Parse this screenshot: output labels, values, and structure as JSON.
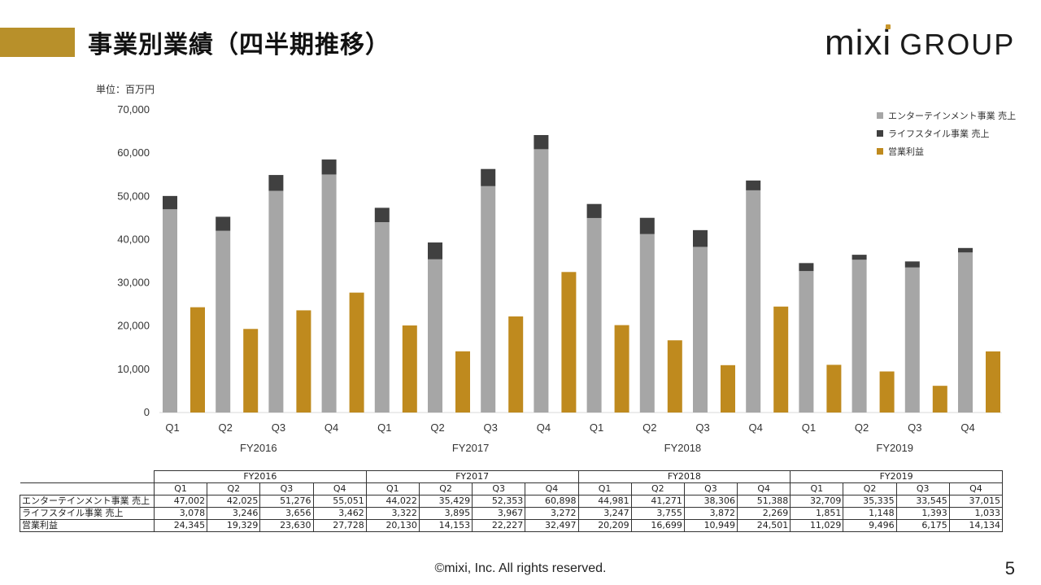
{
  "header": {
    "title": "事業別業績（四半期推移）",
    "logo_mixi": "mixi",
    "logo_group": "GROUP"
  },
  "colors": {
    "accent": "#b8902a",
    "entertainment": "#a6a6a6",
    "lifestyle": "#404040",
    "operating_profit": "#bf8a1e"
  },
  "chart_data": {
    "type": "bar",
    "unit_label": "単位：百万円",
    "ylim": [
      0,
      70000
    ],
    "yticks": [
      "0",
      "10,000",
      "20,000",
      "30,000",
      "40,000",
      "50,000",
      "60,000",
      "70,000"
    ],
    "grid": false,
    "legend_position": "top-right",
    "groups": [
      "FY2016",
      "FY2017",
      "FY2018",
      "FY2019"
    ],
    "categories": [
      "Q1",
      "Q2",
      "Q3",
      "Q4",
      "Q1",
      "Q2",
      "Q3",
      "Q4",
      "Q1",
      "Q2",
      "Q3",
      "Q4",
      "Q1",
      "Q2",
      "Q3",
      "Q4"
    ],
    "series": [
      {
        "name": "エンターテインメント事業 売上",
        "stack": "sales",
        "values": [
          47002,
          42025,
          51276,
          55051,
          44022,
          35429,
          52353,
          60898,
          44981,
          41271,
          38306,
          51388,
          32709,
          35335,
          33545,
          37015
        ]
      },
      {
        "name": "ライフスタイル事業 売上",
        "stack": "sales",
        "values": [
          3078,
          3246,
          3656,
          3462,
          3322,
          3895,
          3967,
          3272,
          3247,
          3755,
          3872,
          2269,
          1851,
          1148,
          1393,
          1033
        ]
      },
      {
        "name": "営業利益",
        "stack": "profit",
        "values": [
          24345,
          19329,
          23630,
          27728,
          20130,
          14153,
          22227,
          32497,
          20209,
          16699,
          10949,
          24501,
          11029,
          9496,
          6175,
          14134
        ]
      }
    ]
  },
  "table": {
    "rows": [
      {
        "label": "エンターテインメント事業 売上",
        "values": [
          "47,002",
          "42,025",
          "51,276",
          "55,051",
          "44,022",
          "35,429",
          "52,353",
          "60,898",
          "44,981",
          "41,271",
          "38,306",
          "51,388",
          "32,709",
          "35,335",
          "33,545",
          "37,015"
        ]
      },
      {
        "label": "ライフスタイル事業 売上",
        "values": [
          "3,078",
          "3,246",
          "3,656",
          "3,462",
          "3,322",
          "3,895",
          "3,967",
          "3,272",
          "3,247",
          "3,755",
          "3,872",
          "2,269",
          "1,851",
          "1,148",
          "1,393",
          "1,033"
        ]
      },
      {
        "label": "営業利益",
        "values": [
          "24,345",
          "19,329",
          "23,630",
          "27,728",
          "20,130",
          "14,153",
          "22,227",
          "32,497",
          "20,209",
          "16,699",
          "10,949",
          "24,501",
          "11,029",
          "9,496",
          "6,175",
          "14,134"
        ]
      }
    ]
  },
  "footer": {
    "copyright": "©mixi, Inc. All rights reserved.",
    "page_number": "5"
  }
}
